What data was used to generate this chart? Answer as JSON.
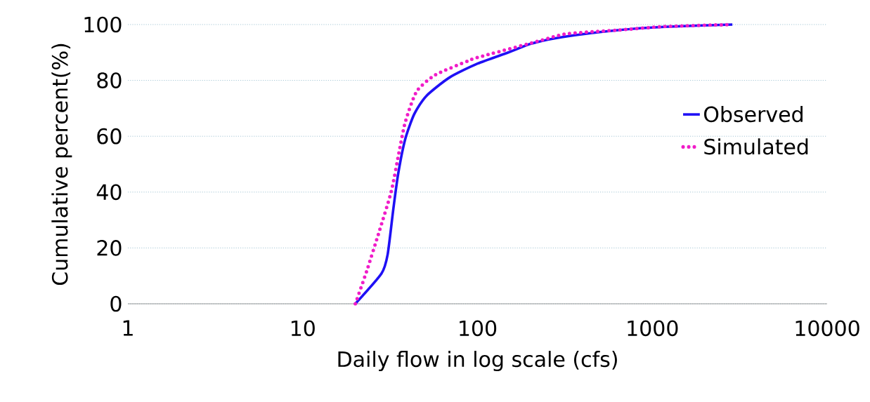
{
  "chart_data": {
    "type": "line",
    "xlabel": "Daily flow in log scale (cfs)",
    "ylabel": "Cumulative percent(%)",
    "log": "x",
    "xlim": [
      1,
      10000
    ],
    "xticks": [
      1,
      10,
      100,
      1000,
      10000
    ],
    "ylim": [
      0,
      100
    ],
    "yticks": [
      0,
      20,
      40,
      60,
      80,
      100
    ],
    "grid": "y",
    "legend": "right",
    "marker": "none",
    "series": [
      {
        "name": "Observed",
        "color": "#1f10f5",
        "line_style": "solid",
        "x": [
          20,
          28.2,
          30.6,
          33,
          35.2,
          38.6,
          43.5,
          50.9,
          69,
          100,
          150,
          204,
          303,
          635,
          1180,
          2870
        ],
        "values": [
          0,
          10.8,
          17.6,
          34,
          46.7,
          59,
          68,
          74.4,
          81,
          86,
          90,
          93.2,
          95.5,
          98,
          99.2,
          100
        ]
      },
      {
        "name": "Simulated",
        "color": "#f01cc8",
        "line_style": "dotted",
        "x": [
          20,
          23.2,
          27.4,
          32.1,
          35.5,
          38.6,
          44.8,
          57.4,
          88.7,
          100,
          236,
          324,
          635,
          1180,
          2870
        ],
        "values": [
          0,
          11.6,
          25.9,
          40.2,
          54,
          65,
          76,
          82,
          87,
          88.2,
          94.5,
          96.7,
          98,
          99.3,
          100
        ]
      }
    ]
  }
}
